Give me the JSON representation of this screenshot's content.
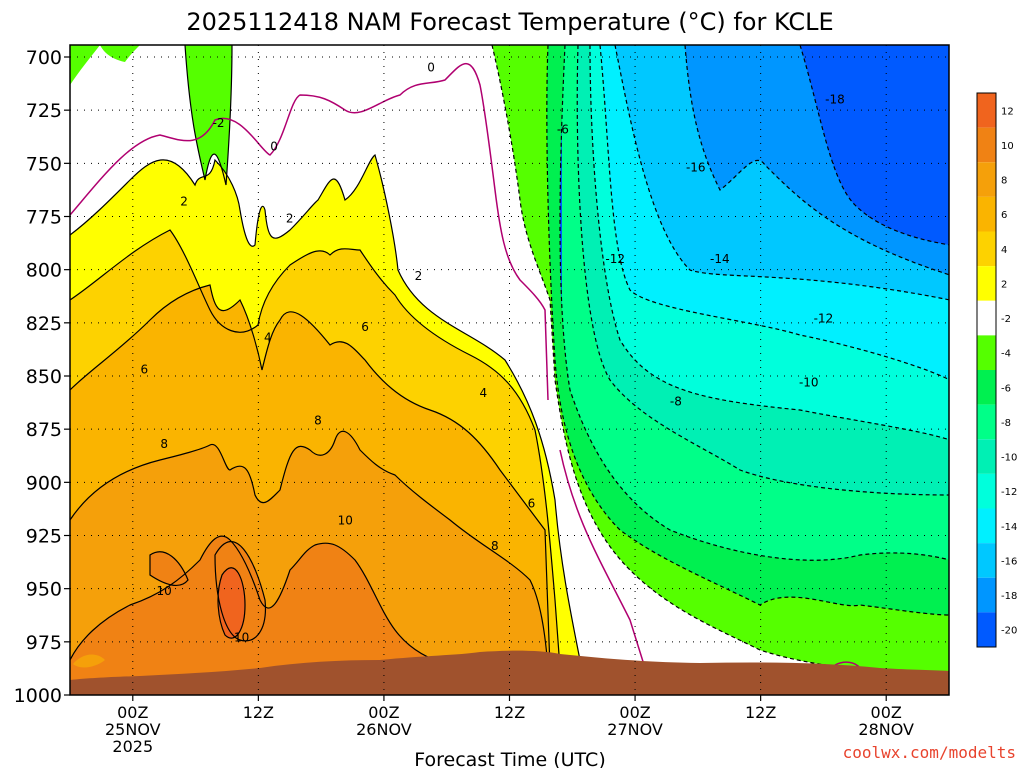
{
  "chart_data": {
    "type": "heatmap",
    "title": "2025112418 NAM Forecast Temperature (°C) for KCLE",
    "xlabel": "Forecast Time (UTC)",
    "ylabel": "",
    "x_ticks": [
      {
        "hour": 6,
        "labels": [
          "00Z",
          "25NOV",
          "2025"
        ]
      },
      {
        "hour": 18,
        "labels": [
          "12Z"
        ]
      },
      {
        "hour": 30,
        "labels": [
          "00Z",
          "26NOV"
        ]
      },
      {
        "hour": 42,
        "labels": [
          "12Z"
        ]
      },
      {
        "hour": 54,
        "labels": [
          "00Z",
          "27NOV"
        ]
      },
      {
        "hour": 66,
        "labels": [
          "12Z"
        ]
      },
      {
        "hour": 78,
        "labels": [
          "00Z",
          "28NOV"
        ]
      }
    ],
    "xlim": [
      0,
      84
    ],
    "y_ticks": [
      700,
      725,
      750,
      775,
      800,
      825,
      850,
      875,
      900,
      925,
      950,
      975,
      1000
    ],
    "ylim": [
      1000,
      700
    ],
    "grid": true,
    "colorbar": {
      "levels": [
        12,
        10,
        8,
        6,
        4,
        2,
        -2,
        -4,
        -6,
        -8,
        -10,
        -12,
        -14,
        -16,
        -18,
        -20
      ],
      "colors": [
        "#f0641e",
        "#f08214",
        "#f5a00a",
        "#fab400",
        "#fdd200",
        "#ffff00",
        "#ffffff",
        "#55ff00",
        "#00f050",
        "#00ff88",
        "#00f0b4",
        "#00ffdc",
        "#00f0ff",
        "#00c8ff",
        "#0096ff",
        "#005aff"
      ]
    },
    "contour_labels": [
      {
        "text": "0",
        "hour": 34.5,
        "p": 705
      },
      {
        "text": "0",
        "hour": 19.5,
        "p": 742
      },
      {
        "text": "-2",
        "hour": 14.2,
        "p": 731
      },
      {
        "text": "2",
        "hour": 10.9,
        "p": 768
      },
      {
        "text": "2",
        "hour": 21.0,
        "p": 776
      },
      {
        "text": "2",
        "hour": 33.3,
        "p": 803
      },
      {
        "text": "4",
        "hour": 18.9,
        "p": 832
      },
      {
        "text": "4",
        "hour": 39.5,
        "p": 858
      },
      {
        "text": "6",
        "hour": 7.1,
        "p": 847
      },
      {
        "text": "6",
        "hour": 28.2,
        "p": 827
      },
      {
        "text": "6",
        "hour": 44.1,
        "p": 910
      },
      {
        "text": "8",
        "hour": 9.0,
        "p": 882
      },
      {
        "text": "8",
        "hour": 23.7,
        "p": 871
      },
      {
        "text": "8",
        "hour": 40.6,
        "p": 930
      },
      {
        "text": "10",
        "hour": 9.0,
        "p": 951
      },
      {
        "text": "10",
        "hour": 16.4,
        "p": 973
      },
      {
        "text": "10",
        "hour": 26.3,
        "p": 918
      },
      {
        "text": "-6",
        "hour": 47.1,
        "p": 734
      },
      {
        "text": "-8",
        "hour": 57.9,
        "p": 862
      },
      {
        "text": "-10",
        "hour": 70.6,
        "p": 853
      },
      {
        "text": "-12",
        "hour": 52.1,
        "p": 795
      },
      {
        "text": "-12",
        "hour": 72.0,
        "p": 823
      },
      {
        "text": "-14",
        "hour": 62.1,
        "p": 795
      },
      {
        "text": "-16",
        "hour": 59.8,
        "p": 752
      },
      {
        "text": "-18",
        "hour": 73.1,
        "p": 720
      }
    ]
  },
  "credit": "coolwx.com/modelts"
}
